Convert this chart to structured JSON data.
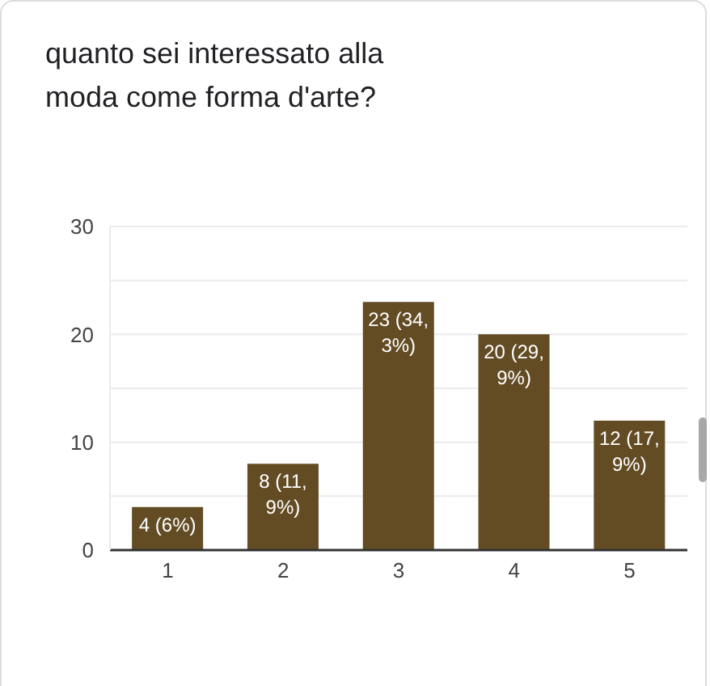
{
  "chart_data": {
    "type": "bar",
    "title": "quanto sei interessato alla moda come forma d'arte?",
    "categories": [
      "1",
      "2",
      "3",
      "4",
      "5"
    ],
    "values": [
      4,
      8,
      23,
      20,
      12
    ],
    "color": "#634c24",
    "value_labels": [
      "4 (6%)",
      "8 (11,9%)",
      "23 (34,3%)",
      "20 (29,9%)",
      "12 (17,9%)"
    ],
    "ylim": [
      0,
      30
    ],
    "yticks": [
      0,
      {
        "value": 5,
        "label": null
      },
      10,
      {
        "value": 15,
        "label": null
      },
      20,
      {
        "value": 25,
        "label": null
      },
      30
    ],
    "grid": "y"
  }
}
